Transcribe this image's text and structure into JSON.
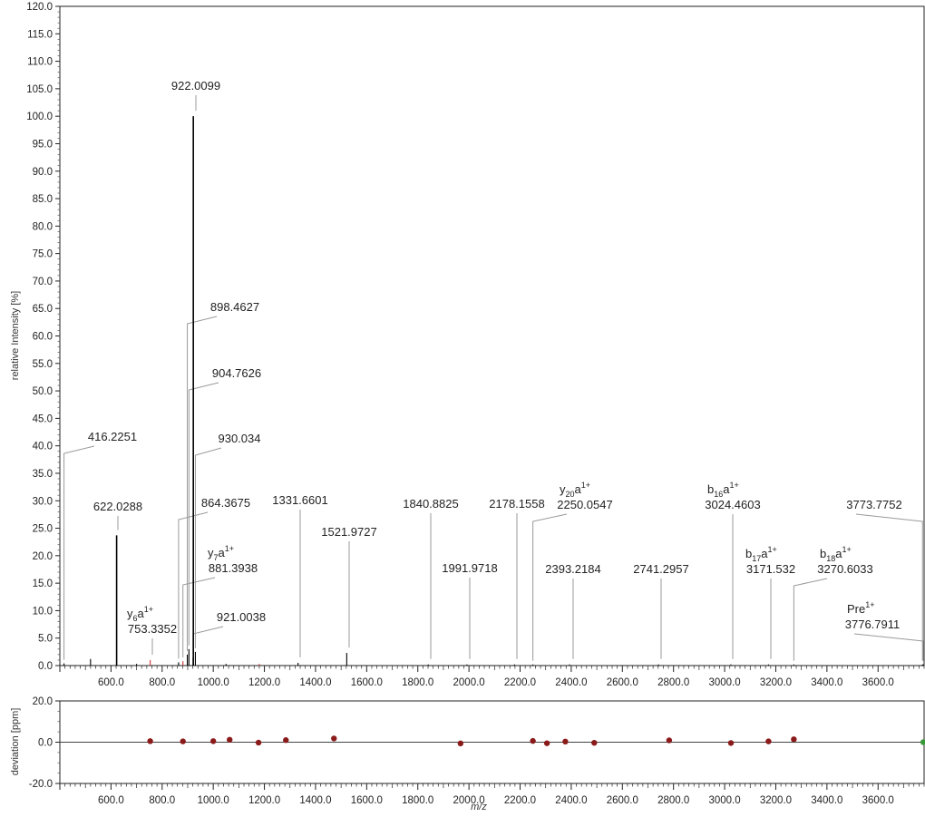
{
  "chart_data": [
    {
      "type": "bar",
      "subtype": "mass-spectrum",
      "ylabel": "relative Intensity [%]",
      "xlim": [
        400,
        3780
      ],
      "ylim": [
        0,
        120
      ],
      "x_ticks": [
        600,
        800,
        1000,
        1200,
        1400,
        1600,
        1800,
        2000,
        2200,
        2400,
        2600,
        2800,
        3000,
        3200,
        3400,
        3600
      ],
      "y_ticks": [
        0,
        5,
        10,
        15,
        20,
        25,
        30,
        35,
        40,
        45,
        50,
        55,
        60,
        65,
        70,
        75,
        80,
        85,
        90,
        95,
        100,
        105,
        110,
        115,
        120
      ],
      "tick_format_decimals": 1,
      "peaks": [
        {
          "mz": 416.2251,
          "intensity": 0.4
        },
        {
          "mz": 520.0,
          "intensity": 1.2
        },
        {
          "mz": 622.0288,
          "intensity": 23.7
        },
        {
          "mz": 700.0,
          "intensity": 0.3
        },
        {
          "mz": 753.3352,
          "intensity": 1.0,
          "color": "#cc3333"
        },
        {
          "mz": 864.3675,
          "intensity": 0.6
        },
        {
          "mz": 881.3938,
          "intensity": 0.8,
          "color": "#cc3333"
        },
        {
          "mz": 898.4627,
          "intensity": 2.0
        },
        {
          "mz": 904.7626,
          "intensity": 3.0
        },
        {
          "mz": 921.0038,
          "intensity": 1.5
        },
        {
          "mz": 922.0099,
          "intensity": 100.0
        },
        {
          "mz": 930.034,
          "intensity": 2.5
        },
        {
          "mz": 1050.0,
          "intensity": 0.3
        },
        {
          "mz": 1180.0,
          "intensity": 0.3,
          "color": "#cc3333"
        },
        {
          "mz": 1331.6601,
          "intensity": 0.5
        },
        {
          "mz": 1521.9727,
          "intensity": 2.3
        },
        {
          "mz": 1840.8825,
          "intensity": 0.2
        },
        {
          "mz": 1991.9718,
          "intensity": 0.2
        },
        {
          "mz": 2178.1558,
          "intensity": 0.2
        },
        {
          "mz": 2250.0547,
          "intensity": 0.2
        },
        {
          "mz": 2393.2184,
          "intensity": 0.2
        },
        {
          "mz": 2741.2957,
          "intensity": 0.2
        },
        {
          "mz": 3024.4603,
          "intensity": 0.2
        },
        {
          "mz": 3171.532,
          "intensity": 0.2
        },
        {
          "mz": 3270.6033,
          "intensity": 0.2
        },
        {
          "mz": 3773.7752,
          "intensity": 0.2
        },
        {
          "mz": 3776.7911,
          "intensity": 0.2
        }
      ],
      "annotations": [
        {
          "mz": 922.0099,
          "text": "922.0099",
          "ion": ""
        },
        {
          "mz": 898.4627,
          "text": "898.4627",
          "ion": ""
        },
        {
          "mz": 904.7626,
          "text": "904.7626",
          "ion": ""
        },
        {
          "mz": 930.034,
          "text": "930.034",
          "ion": ""
        },
        {
          "mz": 416.2251,
          "text": "416.2251",
          "ion": ""
        },
        {
          "mz": 622.0288,
          "text": "622.0288",
          "ion": ""
        },
        {
          "mz": 864.3675,
          "text": "864.3675",
          "ion": ""
        },
        {
          "mz": 1331.6601,
          "text": "1331.6601",
          "ion": ""
        },
        {
          "mz": 1840.8825,
          "text": "1840.8825",
          "ion": ""
        },
        {
          "mz": 2178.1558,
          "text": "2178.1558",
          "ion": ""
        },
        {
          "mz": 2250.0547,
          "text": "2250.0547",
          "ion": {
            "base": "y",
            "sub": "20",
            "sup": "1+"
          }
        },
        {
          "mz": 3024.4603,
          "text": "3024.4603",
          "ion": {
            "base": "b",
            "sub": "16",
            "sup": "1+"
          }
        },
        {
          "mz": 3773.7752,
          "text": "3773.7752",
          "ion": ""
        },
        {
          "mz": 881.3938,
          "text": "881.3938",
          "ion": {
            "base": "y",
            "sub": "7",
            "sup": "1+"
          }
        },
        {
          "mz": 1521.9727,
          "text": "1521.9727",
          "ion": ""
        },
        {
          "mz": 1991.9718,
          "text": "1991.9718",
          "ion": ""
        },
        {
          "mz": 2393.2184,
          "text": "2393.2184",
          "ion": ""
        },
        {
          "mz": 2741.2957,
          "text": "2741.2957",
          "ion": ""
        },
        {
          "mz": 3171.532,
          "text": "3171.532",
          "ion": {
            "base": "b",
            "sub": "17",
            "sup": "1+"
          }
        },
        {
          "mz": 3270.6033,
          "text": "3270.6033",
          "ion": {
            "base": "b",
            "sub": "18",
            "sup": "1+"
          }
        },
        {
          "mz": 753.3352,
          "text": "753.3352",
          "ion": {
            "base": "y",
            "sub": "6",
            "sup": "1+"
          }
        },
        {
          "mz": 921.0038,
          "text": "921.0038",
          "ion": ""
        },
        {
          "mz": 3776.7911,
          "text": "3776.7911",
          "ion": {
            "base": "Pre",
            "sub": "",
            "sup": "1+"
          }
        }
      ]
    },
    {
      "type": "scatter",
      "subtype": "mass-error",
      "ylabel": "deviation [ppm]",
      "xlabel": "m/z",
      "xlim": [
        400,
        3780
      ],
      "ylim": [
        -20,
        20
      ],
      "x_ticks": [
        600,
        800,
        1000,
        1200,
        1400,
        1600,
        1800,
        2000,
        2200,
        2400,
        2600,
        2800,
        3000,
        3200,
        3400,
        3600
      ],
      "y_ticks": [
        -20,
        0,
        20
      ],
      "tick_format_decimals": 1,
      "marker_color": "#8b1a1a",
      "points": [
        {
          "mz": 753.3,
          "dev": 0.5
        },
        {
          "mz": 881.4,
          "dev": 0.4
        },
        {
          "mz": 1000.0,
          "dev": 0.5
        },
        {
          "mz": 1064.0,
          "dev": 1.2
        },
        {
          "mz": 1177.0,
          "dev": -0.2
        },
        {
          "mz": 1284.0,
          "dev": 1.0
        },
        {
          "mz": 1472.0,
          "dev": 1.8
        },
        {
          "mz": 1967.0,
          "dev": -0.6
        },
        {
          "mz": 2250.0,
          "dev": 0.6
        },
        {
          "mz": 2305.0,
          "dev": -0.5
        },
        {
          "mz": 2377.0,
          "dev": 0.3
        },
        {
          "mz": 2490.0,
          "dev": -0.3
        },
        {
          "mz": 2783.0,
          "dev": 0.9
        },
        {
          "mz": 3024.5,
          "dev": -0.4
        },
        {
          "mz": 3171.5,
          "dev": 0.4
        },
        {
          "mz": 3270.6,
          "dev": 1.4
        },
        {
          "mz": 3776.8,
          "dev": 0.0,
          "color": "#3a9a3a"
        }
      ]
    }
  ]
}
